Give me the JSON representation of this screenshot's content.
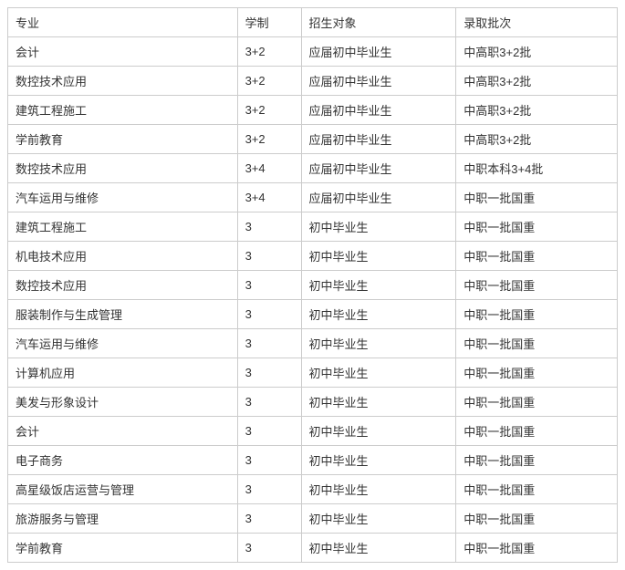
{
  "table": {
    "columns": [
      "专业",
      "学制",
      "招生对象",
      "录取批次"
    ],
    "rows": [
      [
        "会计",
        "3+2",
        "应届初中毕业生",
        "中高职3+2批"
      ],
      [
        "数控技术应用",
        "3+2",
        "应届初中毕业生",
        "中高职3+2批"
      ],
      [
        "建筑工程施工",
        "3+2",
        "应届初中毕业生",
        "中高职3+2批"
      ],
      [
        "学前教育",
        "3+2",
        "应届初中毕业生",
        "中高职3+2批"
      ],
      [
        "数控技术应用",
        "3+4",
        "应届初中毕业生",
        "中职本科3+4批"
      ],
      [
        "汽车运用与维修",
        "3+4",
        "应届初中毕业生",
        "中职一批国重"
      ],
      [
        "建筑工程施工",
        "3",
        "初中毕业生",
        "中职一批国重"
      ],
      [
        "机电技术应用",
        "3",
        "初中毕业生",
        "中职一批国重"
      ],
      [
        "数控技术应用",
        "3",
        "初中毕业生",
        "中职一批国重"
      ],
      [
        "服装制作与生成管理",
        "3",
        "初中毕业生",
        "中职一批国重"
      ],
      [
        "汽车运用与维修",
        "3",
        "初中毕业生",
        "中职一批国重"
      ],
      [
        "计算机应用",
        "3",
        "初中毕业生",
        "中职一批国重"
      ],
      [
        "美发与形象设计",
        "3",
        "初中毕业生",
        "中职一批国重"
      ],
      [
        "会计",
        "3",
        "初中毕业生",
        "中职一批国重"
      ],
      [
        "电子商务",
        "3",
        "初中毕业生",
        "中职一批国重"
      ],
      [
        "高星级饭店运营与管理",
        "3",
        "初中毕业生",
        "中职一批国重"
      ],
      [
        "旅游服务与管理",
        "3",
        "初中毕业生",
        "中职一批国重"
      ],
      [
        "学前教育",
        "3",
        "初中毕业生",
        "中职一批国重"
      ]
    ],
    "column_classes": [
      "col-major",
      "col-duration",
      "col-target",
      "col-batch"
    ],
    "border_color": "#cccccc",
    "text_color": "#333333",
    "background_color": "#ffffff",
    "font_size": 13
  }
}
